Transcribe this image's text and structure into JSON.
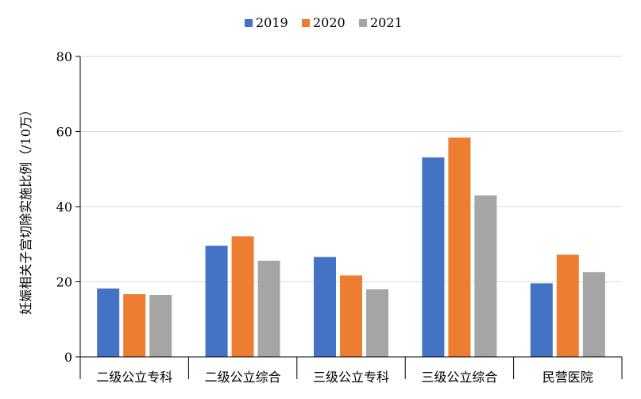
{
  "chart_data": {
    "type": "bar",
    "title": "",
    "xlabel": "",
    "ylabel": "妊娠相关子宫切除实施比例（/10万）",
    "ylim": [
      0,
      80
    ],
    "yticks": [
      0,
      20,
      40,
      60,
      80
    ],
    "grid": true,
    "legend_position": "top-center",
    "categories": [
      "二级公立专科",
      "二级公立综合",
      "三级公立专科",
      "三级公立综合",
      "民营医院"
    ],
    "series": [
      {
        "name": "2019",
        "color": "#4472C4",
        "values": [
          18.2,
          29.6,
          26.6,
          53.1,
          19.6
        ]
      },
      {
        "name": "2020",
        "color": "#ED7D31",
        "values": [
          16.7,
          32.1,
          21.7,
          58.4,
          27.2
        ]
      },
      {
        "name": "2021",
        "color": "#A5A5A5",
        "values": [
          16.5,
          25.6,
          18.0,
          43.0,
          22.6
        ]
      }
    ]
  }
}
